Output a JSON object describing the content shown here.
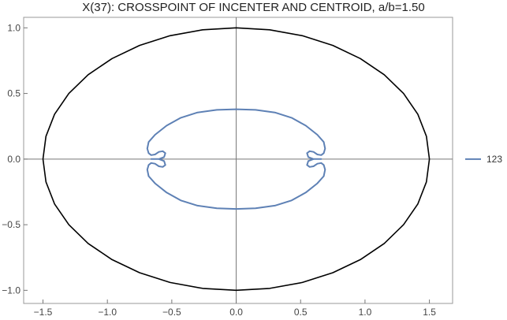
{
  "chart_data": {
    "type": "line",
    "title": "X(37): CROSSPOINT OF INCENTER AND CENTROID, a/b=1.50",
    "xlabel": "",
    "ylabel": "",
    "xlim": [
      -1.65,
      1.68
    ],
    "ylim": [
      -1.1,
      1.08
    ],
    "xticks": [
      -1.5,
      -1.0,
      -0.5,
      0.0,
      0.5,
      1.0,
      1.5
    ],
    "xtick_labels": [
      "−1.5",
      "−1.0",
      "−0.5",
      "0.0",
      "0.5",
      "1.0",
      "1.5"
    ],
    "yticks": [
      -1.0,
      -0.5,
      0.0,
      0.5,
      1.0
    ],
    "ytick_labels": [
      "−1.0",
      "−0.5",
      "0.0",
      "0.5",
      "1.0"
    ],
    "grid": false,
    "legend_position": "right",
    "series": [
      {
        "color": "#000000",
        "x": [
          1.5,
          1.477,
          1.41,
          1.299,
          1.149,
          0.964,
          0.75,
          0.513,
          0.26,
          0.0,
          -0.26,
          -0.513,
          -0.75,
          -0.964,
          -1.149,
          -1.299,
          -1.41,
          -1.477,
          -1.5,
          -1.477,
          -1.41,
          -1.299,
          -1.149,
          -0.964,
          -0.75,
          -0.513,
          -0.26,
          0.0,
          0.26,
          0.513,
          0.75,
          0.964,
          1.149,
          1.299,
          1.41,
          1.477,
          1.5
        ],
        "y": [
          0.0,
          0.174,
          0.342,
          0.5,
          0.643,
          0.766,
          0.866,
          0.94,
          0.985,
          1.0,
          0.985,
          0.94,
          0.866,
          0.766,
          0.643,
          0.5,
          0.342,
          0.174,
          0.0,
          -0.174,
          -0.342,
          -0.5,
          -0.643,
          -0.766,
          -0.866,
          -0.94,
          -0.985,
          -1.0,
          -0.985,
          -0.94,
          -0.866,
          -0.766,
          -0.643,
          -0.5,
          -0.342,
          -0.174,
          0.0
        ]
      },
      {
        "name": "123",
        "color": "#5e81b5",
        "x": [
          0.0,
          0.15,
          0.3,
          0.43,
          0.54,
          0.63,
          0.68,
          0.69,
          0.68,
          0.66,
          0.63,
          0.6,
          0.57,
          0.55,
          0.56,
          0.6,
          0.65,
          0.66,
          0.65,
          0.6,
          0.56,
          0.55,
          0.57,
          0.6,
          0.63,
          0.66,
          0.68,
          0.69,
          0.68,
          0.63,
          0.54,
          0.43,
          0.3,
          0.15,
          0.0,
          -0.15,
          -0.3,
          -0.43,
          -0.54,
          -0.63,
          -0.68,
          -0.69,
          -0.68,
          -0.66,
          -0.63,
          -0.6,
          -0.57,
          -0.55,
          -0.56,
          -0.6,
          -0.65,
          -0.66,
          -0.65,
          -0.6,
          -0.56,
          -0.55,
          -0.57,
          -0.6,
          -0.63,
          -0.66,
          -0.68,
          -0.69,
          -0.68,
          -0.63,
          -0.54,
          -0.43,
          -0.3,
          -0.15,
          0.0
        ],
        "y": [
          0.38,
          0.375,
          0.355,
          0.315,
          0.255,
          0.185,
          0.13,
          0.08,
          0.045,
          0.03,
          0.035,
          0.055,
          0.06,
          0.045,
          0.015,
          0.0,
          0.0,
          0.0,
          0.0,
          0.0,
          -0.015,
          -0.045,
          -0.06,
          -0.055,
          -0.035,
          -0.03,
          -0.045,
          -0.08,
          -0.13,
          -0.185,
          -0.255,
          -0.315,
          -0.355,
          -0.375,
          -0.38,
          -0.375,
          -0.355,
          -0.315,
          -0.255,
          -0.185,
          -0.13,
          -0.08,
          -0.045,
          -0.03,
          -0.035,
          -0.055,
          -0.06,
          -0.045,
          -0.015,
          0.0,
          0.0,
          0.0,
          0.0,
          0.0,
          0.015,
          0.045,
          0.06,
          0.055,
          0.035,
          0.03,
          0.045,
          0.08,
          0.13,
          0.185,
          0.255,
          0.315,
          0.355,
          0.375,
          0.38
        ]
      }
    ]
  }
}
